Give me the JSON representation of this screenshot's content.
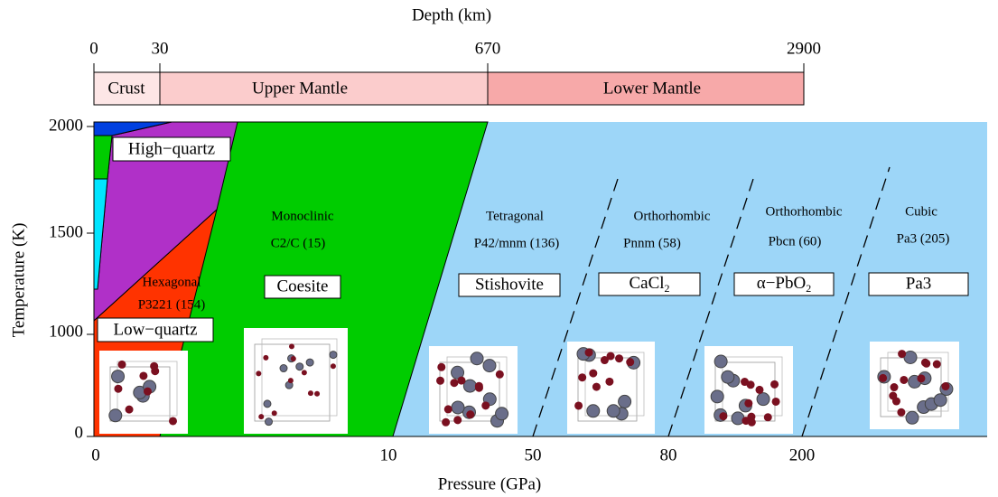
{
  "depth_bar": {
    "title": "Depth (km)",
    "ticks": [
      "0",
      "30",
      "670",
      "2900"
    ],
    "zones": [
      "Crust",
      "Upper Mantle",
      "Lower Mantle"
    ]
  },
  "axes": {
    "x_title": "Pressure (GPa)",
    "x_ticks": [
      "0",
      "10",
      "50",
      "80",
      "200"
    ],
    "y_title": "Temperature (K)",
    "y_ticks": [
      "0",
      "1000",
      "1500",
      "2000"
    ]
  },
  "phases": [
    {
      "name": "High−quartz"
    },
    {
      "crystal_system": "Hexagonal",
      "space_group": "P3221 (154)",
      "name": "Low−quartz"
    },
    {
      "crystal_system": "Monoclinic",
      "space_group": "C2/C (15)",
      "name": "Coesite"
    },
    {
      "crystal_system": "Tetragonal",
      "space_group": "P42/mnm (136)",
      "name": "Stishovite"
    },
    {
      "crystal_system": "Orthorhombic",
      "space_group": "Pnnm (58)",
      "name": "CaCl",
      "name_sub": "2"
    },
    {
      "crystal_system": "Orthorhombic",
      "space_group": "Pbcn (60)",
      "name": "α−PbO",
      "name_sub": "2"
    },
    {
      "crystal_system": "Cubic",
      "space_group": "Pa3 (205)",
      "name": "Pa3"
    }
  ]
}
